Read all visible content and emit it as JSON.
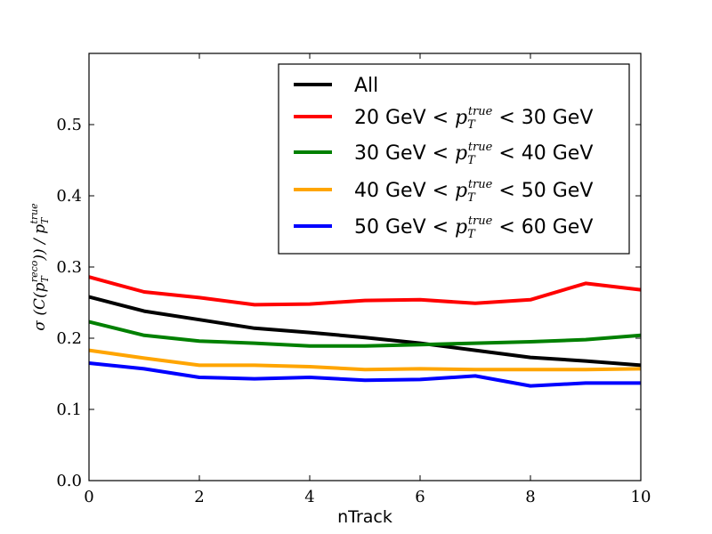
{
  "chart_data": {
    "type": "line",
    "title": "",
    "xlabel": "nTrack",
    "ylabel": "σ (C(p_T^reco)) / p_T^true",
    "xlim": [
      0,
      10
    ],
    "ylim": [
      0.0,
      0.6
    ],
    "xticks": [
      0,
      2,
      4,
      6,
      8,
      10
    ],
    "yticks": [
      0.0,
      0.1,
      0.2,
      0.3,
      0.4,
      0.5
    ],
    "xtick_labels": [
      "0",
      "2",
      "4",
      "6",
      "8",
      "10"
    ],
    "ytick_labels": [
      "0.0",
      "0.1",
      "0.2",
      "0.3",
      "0.4",
      "0.5"
    ],
    "grid": false,
    "legend_position": "top-right",
    "x": [
      0,
      1,
      2,
      3,
      4,
      5,
      6,
      7,
      8,
      9,
      10
    ],
    "series": [
      {
        "name": "All",
        "color": "#000000",
        "values": [
          0.258,
          0.238,
          0.226,
          0.214,
          0.208,
          0.201,
          0.193,
          0.183,
          0.173,
          0.168,
          0.162
        ]
      },
      {
        "name": "20 GeV < p_T^true < 30 GeV",
        "legend_prefix": "20 GeV <",
        "legend_suffix": "< 30 GeV",
        "color": "#ff0000",
        "values": [
          0.286,
          0.265,
          0.257,
          0.247,
          0.248,
          0.253,
          0.254,
          0.249,
          0.254,
          0.277,
          0.268
        ]
      },
      {
        "name": "30 GeV < p_T^true < 40 GeV",
        "legend_prefix": "30 GeV <",
        "legend_suffix": "< 40 GeV",
        "color": "#008000",
        "values": [
          0.223,
          0.204,
          0.196,
          0.193,
          0.189,
          0.189,
          0.191,
          0.193,
          0.195,
          0.198,
          0.204
        ]
      },
      {
        "name": "40 GeV < p_T^true < 50 GeV",
        "legend_prefix": "40 GeV <",
        "legend_suffix": "< 50 GeV",
        "color": "#ffa500",
        "values": [
          0.183,
          0.172,
          0.162,
          0.162,
          0.16,
          0.156,
          0.157,
          0.156,
          0.156,
          0.156,
          0.157
        ]
      },
      {
        "name": "50 GeV < p_T^true < 60 GeV",
        "legend_prefix": "50 GeV <",
        "legend_suffix": "< 60 GeV",
        "color": "#0000ff",
        "values": [
          0.165,
          0.157,
          0.145,
          0.143,
          0.145,
          0.141,
          0.142,
          0.147,
          0.133,
          0.137,
          0.137
        ]
      }
    ]
  }
}
